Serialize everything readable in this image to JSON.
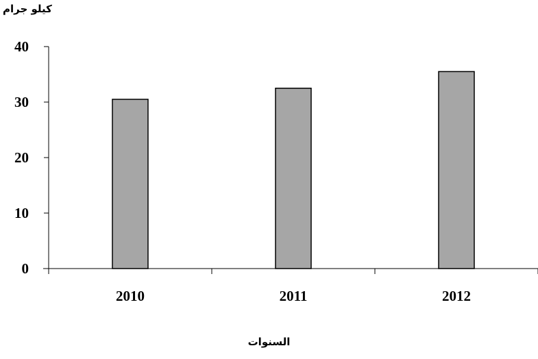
{
  "chart_data": {
    "type": "bar",
    "categories": [
      "2010",
      "2011",
      "2012"
    ],
    "values": [
      30.5,
      32.5,
      35.5
    ],
    "ylabel": "كيلو جرام",
    "xlabel": "السنوات",
    "ylim": [
      0,
      40
    ],
    "yticks": [
      "0",
      "10",
      "20",
      "30",
      "40"
    ],
    "grid": false,
    "bar_color": "#a6a6a6",
    "bar_stroke": "#000000"
  }
}
